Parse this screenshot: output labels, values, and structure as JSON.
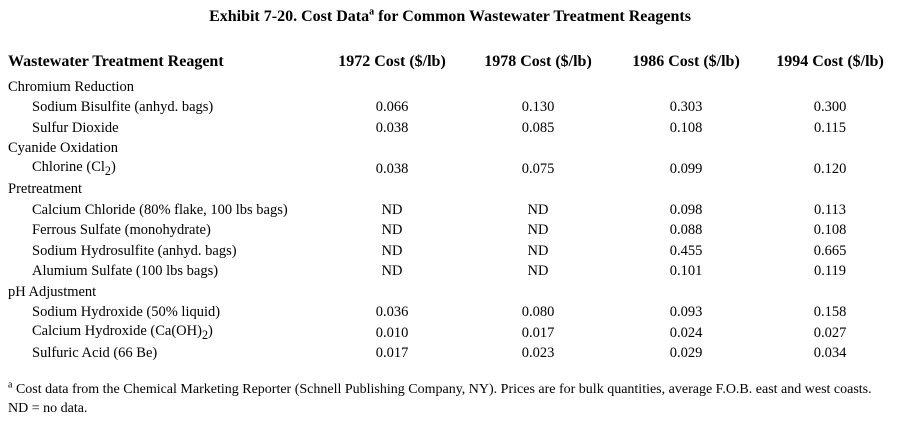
{
  "title": {
    "before": "Exhibit 7-20. Cost Data",
    "sup": "a",
    "after": " for Common Wastewater Treatment Reagents"
  },
  "headers": {
    "reagent": "Wastewater Treatment Reagent",
    "y1972": "1972 Cost ($/lb)",
    "y1978": "1978 Cost ($/lb)",
    "y1986": "1986 Cost ($/lb)",
    "y1994": "1994 Cost ($/lb)"
  },
  "rows": [
    {
      "type": "category",
      "name": "Chromium Reduction"
    },
    {
      "type": "item",
      "name": "Sodium Bisulfite (anhyd. bags)",
      "values": [
        "0.066",
        "0.130",
        "0.303",
        "0.300"
      ]
    },
    {
      "type": "item",
      "name": "Sulfur Dioxide",
      "values": [
        "0.038",
        "0.085",
        "0.108",
        "0.115"
      ]
    },
    {
      "type": "category",
      "name": "Cyanide Oxidation"
    },
    {
      "type": "item",
      "name": "Chlorine (Cl",
      "sub": "2",
      "suffix": ")",
      "values": [
        "0.038",
        "0.075",
        "0.099",
        "0.120"
      ]
    },
    {
      "type": "category",
      "name": "Pretreatment"
    },
    {
      "type": "item",
      "name": "Calcium Chloride (80% flake, 100 lbs bags)",
      "values": [
        "ND",
        "ND",
        "0.098",
        "0.113"
      ]
    },
    {
      "type": "item",
      "name": "Ferrous Sulfate (monohydrate)",
      "values": [
        "ND",
        "ND",
        "0.088",
        "0.108"
      ]
    },
    {
      "type": "item",
      "name": "Sodium Hydrosulfite (anhyd. bags)",
      "values": [
        "ND",
        "ND",
        "0.455",
        "0.665"
      ]
    },
    {
      "type": "item",
      "name": "Alumium Sulfate (100 lbs bags)",
      "values": [
        "ND",
        "ND",
        "0.101",
        "0.119"
      ]
    },
    {
      "type": "category",
      "name": "pH Adjustment"
    },
    {
      "type": "item",
      "name": "Sodium Hydroxide (50% liquid)",
      "values": [
        "0.036",
        "0.080",
        "0.093",
        "0.158"
      ]
    },
    {
      "type": "item",
      "name": "Calcium Hydroxide (Ca(OH)",
      "sub": "2",
      "suffix": ")",
      "values": [
        "0.010",
        "0.017",
        "0.024",
        "0.027"
      ]
    },
    {
      "type": "item",
      "name": "Sulfuric Acid (66 Be)",
      "values": [
        "0.017",
        "0.023",
        "0.029",
        "0.034"
      ]
    }
  ],
  "footnote": {
    "sup": "a",
    "text": " Cost data from the Chemical Marketing Reporter (Schnell Publishing Company, NY). Prices are for bulk quantities, average F.O.B. east and west coasts. ND = no data."
  }
}
